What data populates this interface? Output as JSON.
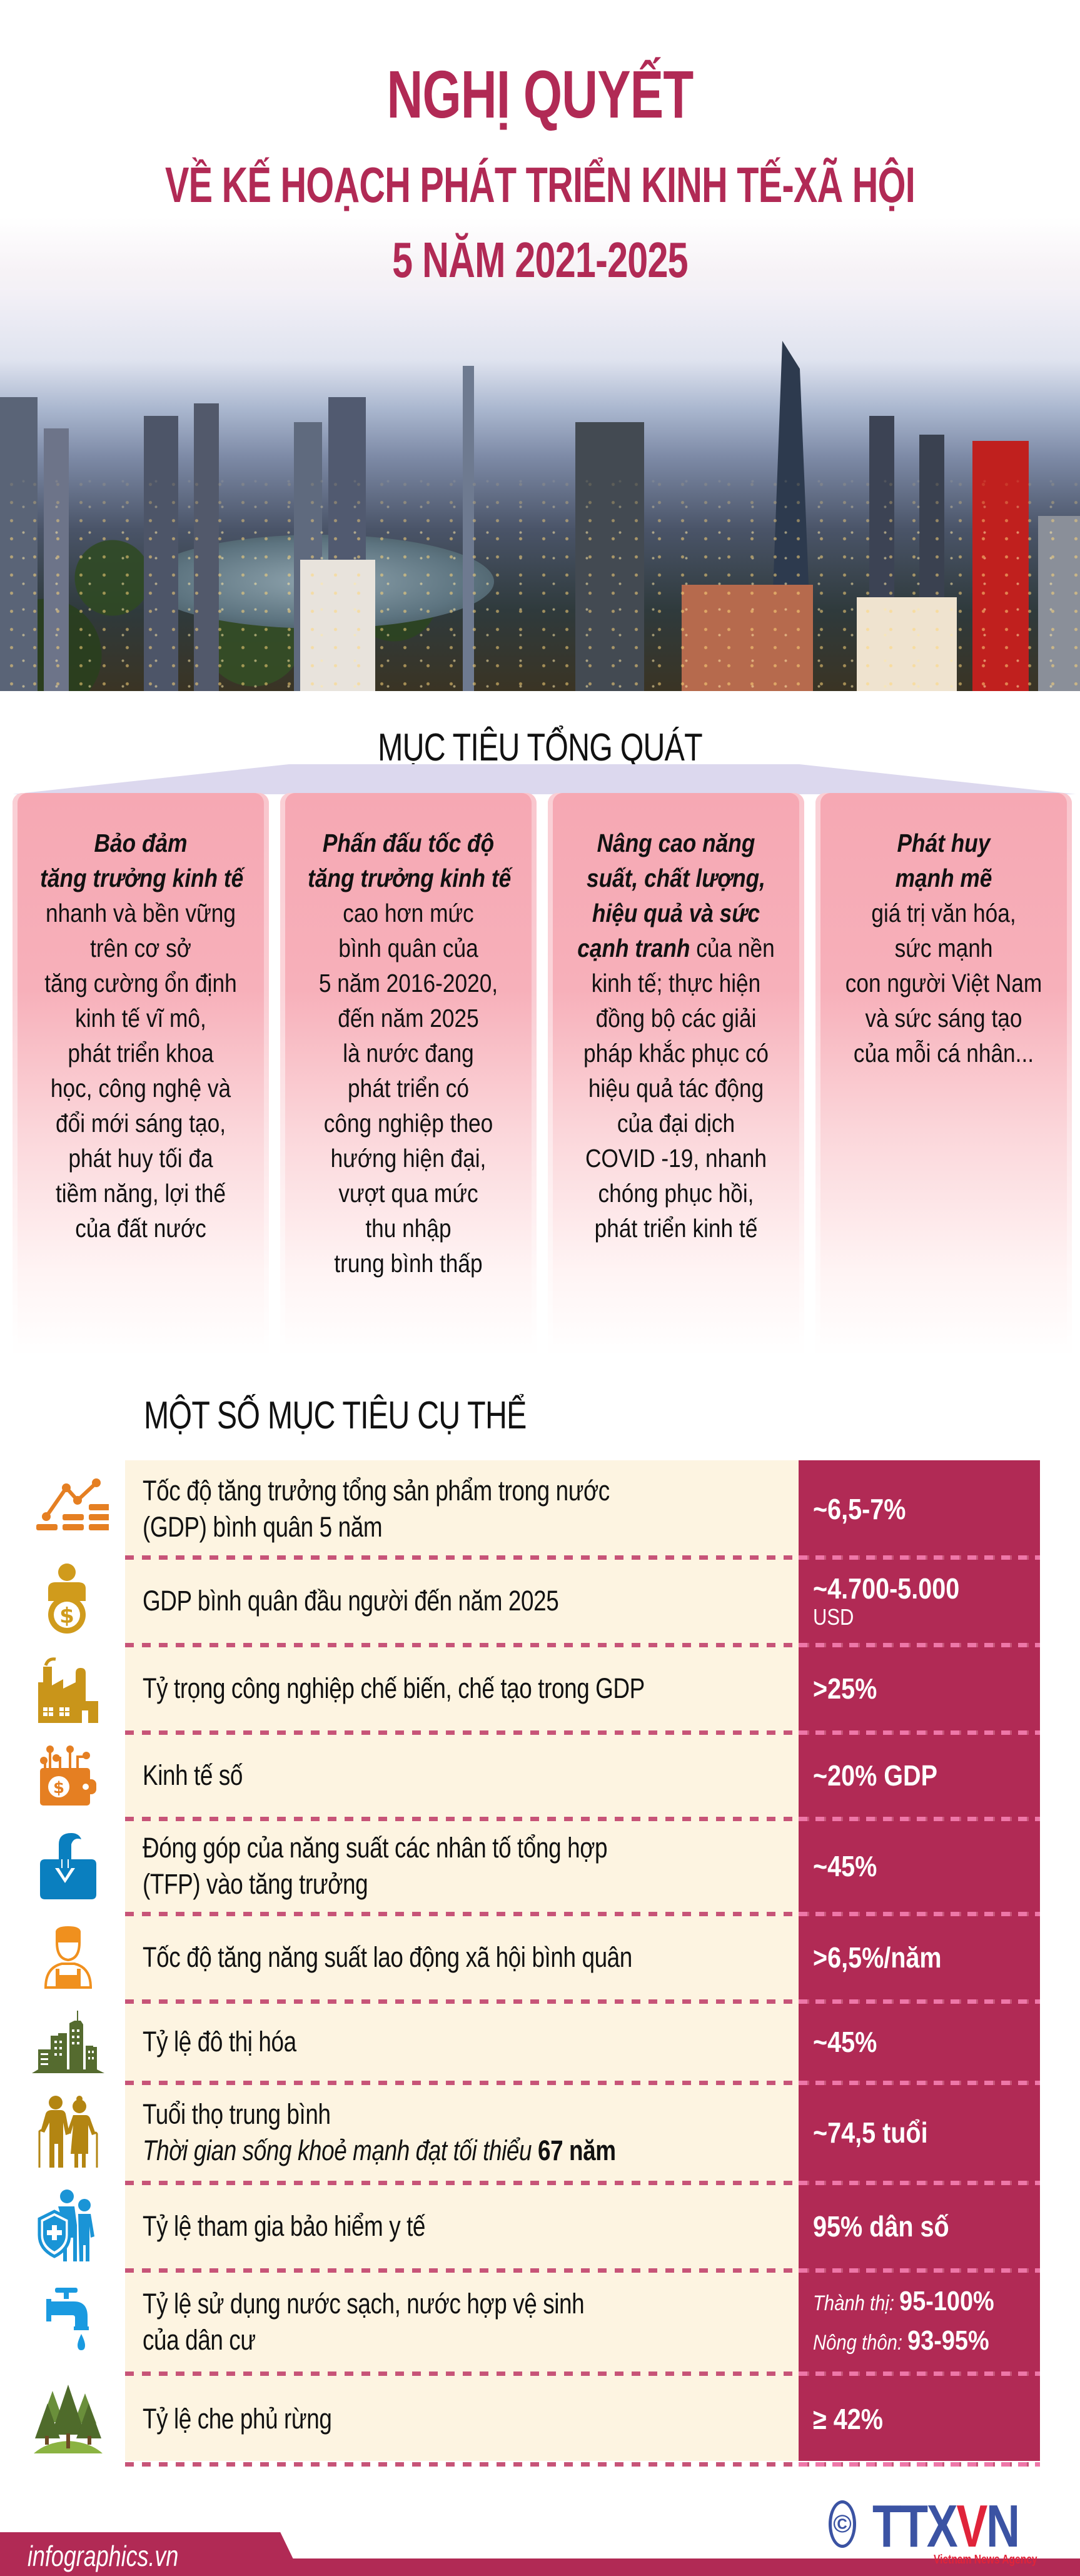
{
  "header": {
    "title": "NGHỊ QUYẾT",
    "subtitle_line1": "VỀ KẾ HOẠCH PHÁT TRIỂN KINH TẾ-XÃ HỘI",
    "subtitle_line2": "5 NĂM 2021-2025",
    "title_color": "#b12a55"
  },
  "hero_image": {
    "description": "Panoramic cityscape of Hanoi (Hoan Kiem lake) blended with Ho Chi Minh City skyline at dusk"
  },
  "general_goals": {
    "title": "MỤC TIÊU TỔNG QUÁT",
    "cards": [
      {
        "lines": [
          {
            "text": "Bảo đảm",
            "em": true
          },
          {
            "text": "tăng trưởng kinh tế",
            "em": true
          },
          {
            "text": "nhanh và bền vững"
          },
          {
            "text": "trên cơ sở"
          },
          {
            "text": "tăng cường ổn định"
          },
          {
            "text": "kinh tế vĩ mô,"
          },
          {
            "text": "phát triển khoa"
          },
          {
            "text": "học, công nghệ và"
          },
          {
            "text": "đổi mới sáng tạo,"
          },
          {
            "text": "phát huy tối đa"
          },
          {
            "text": "tiềm năng, lợi thế"
          },
          {
            "text": "của đất nước"
          }
        ]
      },
      {
        "lines": [
          {
            "text": "Phấn đấu tốc độ",
            "em": true
          },
          {
            "text": "tăng trưởng kinh tế",
            "em": true
          },
          {
            "text": "cao hơn mức"
          },
          {
            "text": "bình quân của"
          },
          {
            "text": "5 năm 2016-2020,"
          },
          {
            "text": "đến năm 2025"
          },
          {
            "text": "là nước đang"
          },
          {
            "text": "phát triển có"
          },
          {
            "text": "công nghiệp theo"
          },
          {
            "text": "hướng hiện đại,"
          },
          {
            "text": "vượt qua mức"
          },
          {
            "text": "thu nhập"
          },
          {
            "text": "trung bình thấp"
          }
        ]
      },
      {
        "lines": [
          {
            "text": "Nâng cao năng",
            "em": true
          },
          {
            "text": "suất, chất lượng,",
            "em": true
          },
          {
            "text": "hiệu quả và sức",
            "em": true
          },
          {
            "text": "cạnh tranh",
            "em": true,
            "rest": " của nền"
          },
          {
            "text": "kinh tế; thực hiện"
          },
          {
            "text": "đồng bộ các giải"
          },
          {
            "text": "pháp khắc phục có"
          },
          {
            "text": "hiệu quả tác động"
          },
          {
            "text": "của đại dịch"
          },
          {
            "text": "COVID -19, nhanh"
          },
          {
            "text": "chóng phục hồi,"
          },
          {
            "text": "phát triển kinh tế"
          }
        ]
      },
      {
        "lines": [
          {
            "text": "Phát huy",
            "em": true
          },
          {
            "text": "mạnh mẽ",
            "em": true
          },
          {
            "text": "giá trị văn hóa,"
          },
          {
            "text": "sức mạnh"
          },
          {
            "text": "con người Việt Nam"
          },
          {
            "text": "và sức sáng tạo"
          },
          {
            "text": "của mỗi cá nhân..."
          }
        ]
      }
    ]
  },
  "specific_targets": {
    "title": "MỘT SỐ MỤC TIÊU CỤ THỂ",
    "colors": {
      "label_bg": "#fdf4e1",
      "value_bg": "#b12a55",
      "divider": "#c75478"
    },
    "rows": [
      {
        "icon": "growth-chart-icon",
        "label": [
          "Tốc độ tăng trưởng tổng sản phẩm trong nước",
          "(GDP) bình quân 5 năm"
        ],
        "value": "~6,5-7%"
      },
      {
        "icon": "person-money-icon",
        "label": [
          "GDP bình quân đầu người đến năm 2025"
        ],
        "value": "~4.700-5.000",
        "unit": "USD"
      },
      {
        "icon": "factory-icon",
        "label": [
          "Tỷ trọng công nghiệp chế biến, chế tạo trong GDP"
        ],
        "value": ">25%"
      },
      {
        "icon": "digital-wallet-icon",
        "label": [
          "Kinh tế số"
        ],
        "value": "~20% GDP"
      },
      {
        "icon": "inbox-download-icon",
        "label": [
          "Đóng góp của năng suất các nhân tố tổng hợp",
          "(TFP) vào tăng trưởng"
        ],
        "value": "~45%"
      },
      {
        "icon": "worker-icon",
        "label": [
          "Tốc độ tăng năng suất lao động xã hội bình quân"
        ],
        "value": ">6,5%/năm"
      },
      {
        "icon": "city-buildings-icon",
        "label": [
          "Tỷ lệ đô thị hóa"
        ],
        "value": "~45%"
      },
      {
        "icon": "elderly-couple-icon",
        "label": [
          "Tuổi thọ trung bình"
        ],
        "label_italic": "Thời gian sống khoẻ mạnh đạt tối thiểu ",
        "label_bold": "67 năm",
        "value": "~74,5 tuổi"
      },
      {
        "icon": "health-insurance-family-icon",
        "label": [
          "Tỷ lệ tham gia bảo hiểm y tế"
        ],
        "value": "95% dân số"
      },
      {
        "icon": "water-tap-icon",
        "label": [
          "Tỷ lệ sử dụng nước sạch, nước hợp vệ sinh",
          "của dân cư"
        ],
        "values": [
          {
            "prefix": "Thành thị:",
            "value": "95-100%"
          },
          {
            "prefix": "Nông thôn:",
            "value": "93-95%"
          }
        ]
      },
      {
        "icon": "forest-icon",
        "label": [
          "Tỷ lệ che phủ rừng"
        ],
        "value": "≥ 42%"
      }
    ]
  },
  "footer": {
    "site": "infographics.vn",
    "logo_copyright": "©",
    "logo_text_a": "TTX",
    "logo_text_v": "V",
    "logo_text_b": "N",
    "logo_subtitle": "Vietnam News Agency"
  }
}
